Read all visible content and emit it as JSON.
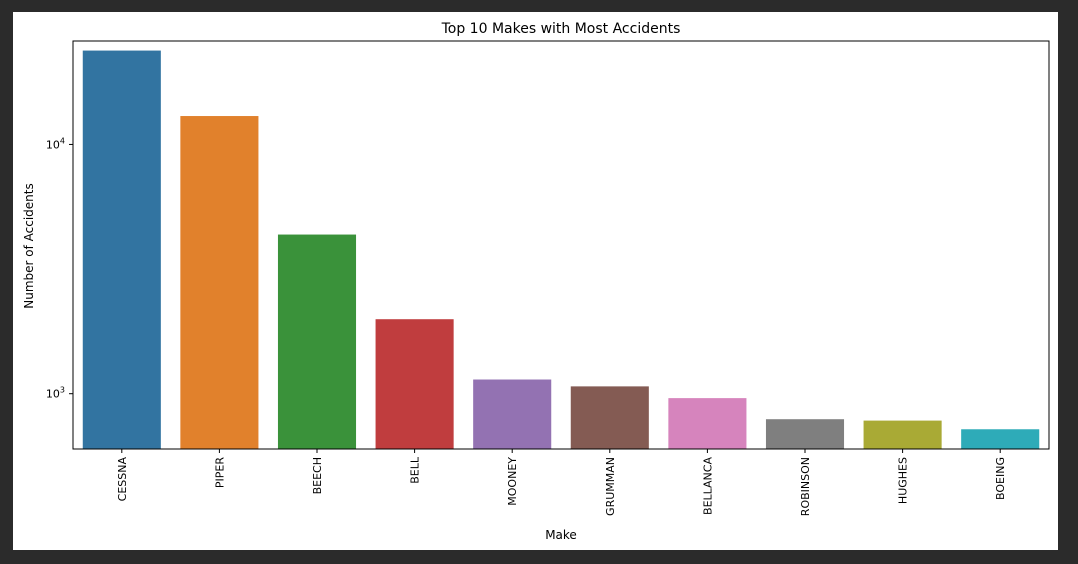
{
  "chart_data": {
    "type": "bar",
    "title": "Top 10 Makes with Most Accidents",
    "xlabel": "Make",
    "ylabel": "Number of Accidents",
    "yscale": "log",
    "ylim": [
      600,
      26000
    ],
    "yticks": [
      {
        "value": 1000,
        "base": "10",
        "exp": "3"
      },
      {
        "value": 10000,
        "base": "10",
        "exp": "4"
      }
    ],
    "categories": [
      "CESSNA",
      "PIPER",
      "BEECH",
      "BELL",
      "MOONEY",
      "GRUMMAN",
      "BELLANCA",
      "ROBINSON",
      "HUGHES",
      "BOEING"
    ],
    "values": [
      23800,
      13000,
      4350,
      1990,
      1140,
      1070,
      960,
      790,
      780,
      720
    ],
    "colors": [
      "#3274a1",
      "#e1812c",
      "#3a923a",
      "#c03d3e",
      "#9372b2",
      "#845b53",
      "#d684bd",
      "#7f7f7f",
      "#a9aa35",
      "#2eabb8"
    ],
    "grid": false,
    "legend": "none"
  }
}
